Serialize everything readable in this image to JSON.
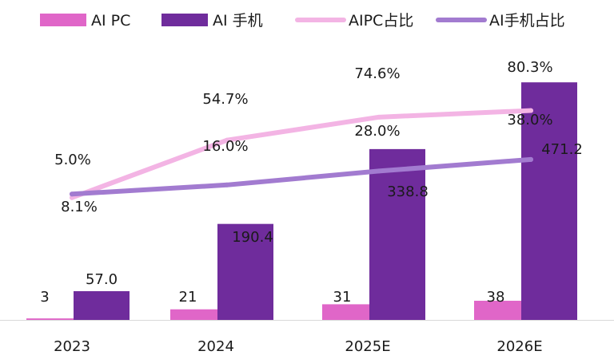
{
  "colors": {
    "ai_pc": "#e066c8",
    "ai_phone": "#6f2c9c",
    "aipc_share": "#f3b4e4",
    "ai_phone_share": "#a27bd0",
    "axis": "#d9d9d9"
  },
  "legend": [
    {
      "key": "ai_pc",
      "label": "AI PC",
      "kind": "bar"
    },
    {
      "key": "ai_phone",
      "label": "AI 手机",
      "kind": "bar"
    },
    {
      "key": "aipc_share",
      "label": "AIPC占比",
      "kind": "line"
    },
    {
      "key": "ai_phone_share",
      "label": "AI手机占比",
      "kind": "line"
    }
  ],
  "chart_data": {
    "type": "bar",
    "legend_position": "top",
    "grid": false,
    "categories": [
      "2023",
      "2024",
      "2025E",
      "2026E"
    ],
    "bar_ylim": [
      0,
      500
    ],
    "line_ylim": [
      0,
      100
    ],
    "series": [
      {
        "key": "ai_pc",
        "name": "AI PC",
        "type": "bar",
        "values": [
          3,
          21,
          31,
          38
        ],
        "labels": [
          "3",
          "21",
          "31",
          "38"
        ]
      },
      {
        "key": "ai_phone",
        "name": "AI 手机",
        "type": "bar",
        "values": [
          57.0,
          190.4,
          338.8,
          471.2
        ],
        "labels": [
          "57.0",
          "190.4",
          "338.8",
          "471.2"
        ]
      },
      {
        "key": "aipc_share",
        "name": "AIPC占比",
        "type": "line",
        "values": [
          5.0,
          54.7,
          74.6,
          80.3
        ],
        "labels": [
          "5.0%",
          "54.7%",
          "74.6%",
          "80.3%"
        ]
      },
      {
        "key": "ai_phone_share",
        "name": "AI手机占比",
        "type": "line",
        "values": [
          8.1,
          16.0,
          28.0,
          38.0
        ],
        "labels": [
          "8.1%",
          "16.0%",
          "28.0%",
          "38.0%"
        ]
      }
    ]
  }
}
